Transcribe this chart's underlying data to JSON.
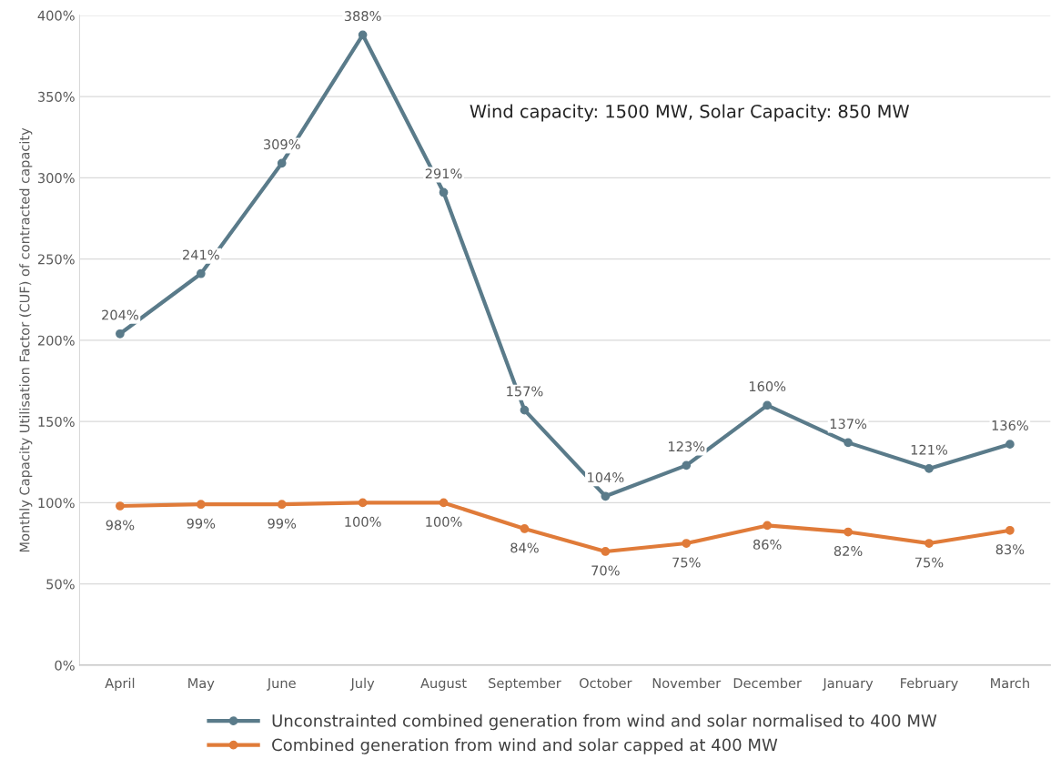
{
  "chart_data": {
    "type": "line",
    "ylabel": "Monthly Capacity Utilisation Factor (CUF) of contracted capacity",
    "categories": [
      "April",
      "May",
      "June",
      "July",
      "August",
      "September",
      "October",
      "November",
      "December",
      "January",
      "February",
      "March"
    ],
    "series": [
      {
        "name": "Unconstrainted combined generation from wind and solar normalised to 400 MW",
        "color": "#5a7b8a",
        "values": [
          204,
          241,
          309,
          388,
          291,
          157,
          104,
          123,
          160,
          137,
          121,
          136
        ],
        "value_labels": [
          "204%",
          "241%",
          "309%",
          "388%",
          "291%",
          "157%",
          "104%",
          "123%",
          "160%",
          "137%",
          "121%",
          "136%"
        ]
      },
      {
        "name": "Combined generation from wind and solar capped at 400 MW",
        "color": "#e07b39",
        "values": [
          98,
          99,
          99,
          100,
          100,
          84,
          70,
          75,
          86,
          82,
          75,
          83
        ],
        "value_labels": [
          "98%",
          "99%",
          "99%",
          "100%",
          "100%",
          "84%",
          "70%",
          "75%",
          "86%",
          "82%",
          "75%",
          "83%"
        ]
      }
    ],
    "ylim": [
      0,
      400
    ],
    "yticks": [
      {
        "value": 0,
        "label": "0%"
      },
      {
        "value": 50,
        "label": "50%"
      },
      {
        "value": 100,
        "label": "100%"
      },
      {
        "value": 150,
        "label": "150%"
      },
      {
        "value": 200,
        "label": "200%"
      },
      {
        "value": 250,
        "label": "250%"
      },
      {
        "value": 300,
        "label": "300%"
      },
      {
        "value": 350,
        "label": "350%"
      },
      {
        "value": 400,
        "label": "400%"
      }
    ],
    "annotations": [
      "Wind capacity: 1500 MW, Solar Capacity: 850 MW"
    ],
    "grid": "y",
    "legend": "bottom",
    "marker": "circle",
    "line_style": "solid"
  }
}
